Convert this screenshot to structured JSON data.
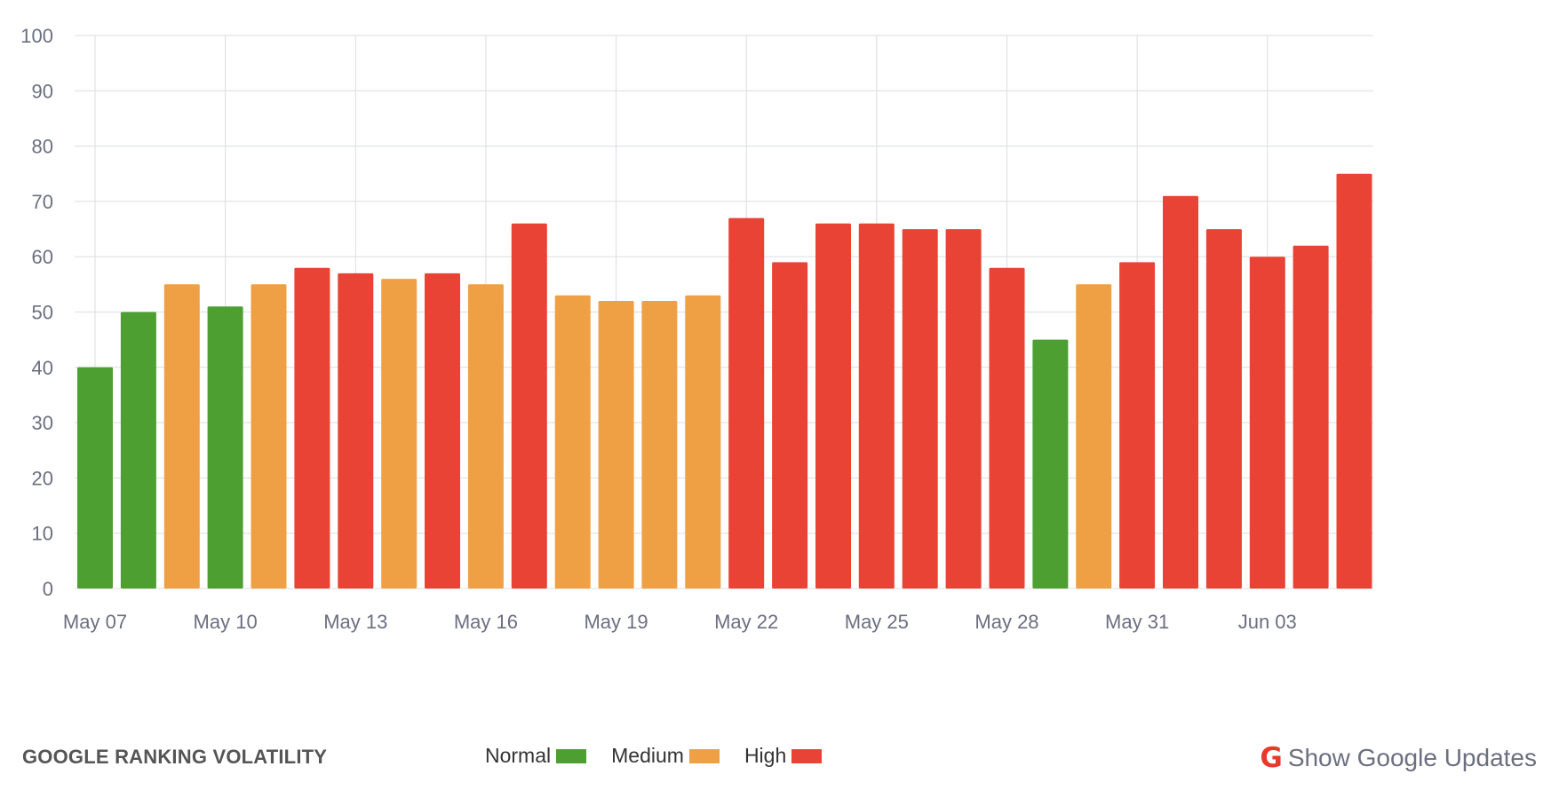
{
  "chart_data": {
    "type": "bar",
    "title": "GOOGLE RANKING VOLATILITY",
    "categories": [
      "May 07",
      "May 08",
      "May 09",
      "May 10",
      "May 11",
      "May 12",
      "May 13",
      "May 14",
      "May 15",
      "May 16",
      "May 17",
      "May 18",
      "May 19",
      "May 20",
      "May 21",
      "May 22",
      "May 23",
      "May 24",
      "May 25",
      "May 26",
      "May 27",
      "May 28",
      "May 29",
      "May 30",
      "May 31",
      "Jun 01",
      "Jun 02",
      "Jun 03",
      "Jun 04",
      "Jun 05"
    ],
    "values": [
      40,
      50,
      55,
      51,
      55,
      58,
      57,
      56,
      57,
      55,
      66,
      53,
      52,
      52,
      53,
      67,
      59,
      66,
      66,
      65,
      65,
      58,
      45,
      55,
      59,
      71,
      65,
      60,
      62,
      75
    ],
    "levels": [
      "Normal",
      "Normal",
      "Medium",
      "Normal",
      "Medium",
      "High",
      "High",
      "Medium",
      "High",
      "Medium",
      "High",
      "Medium",
      "Medium",
      "Medium",
      "Medium",
      "High",
      "High",
      "High",
      "High",
      "High",
      "High",
      "High",
      "Normal",
      "Medium",
      "High",
      "High",
      "High",
      "High",
      "High",
      "High"
    ],
    "x_tick_labels": [
      {
        "label": "May 07",
        "index": 0
      },
      {
        "label": "May 10",
        "index": 3
      },
      {
        "label": "May 13",
        "index": 6
      },
      {
        "label": "May 16",
        "index": 9
      },
      {
        "label": "May 19",
        "index": 12
      },
      {
        "label": "May 22",
        "index": 15
      },
      {
        "label": "May 25",
        "index": 18
      },
      {
        "label": "May 28",
        "index": 21
      },
      {
        "label": "May 31",
        "index": 24
      },
      {
        "label": "Jun 03",
        "index": 27
      }
    ],
    "y_ticks": [
      0,
      10,
      20,
      30,
      40,
      50,
      60,
      70,
      80,
      90,
      100
    ],
    "ylim": [
      0,
      100
    ],
    "grid": true,
    "xlabel": "",
    "ylabel": ""
  },
  "legend": [
    {
      "label": "Normal",
      "color": "#4e9f32"
    },
    {
      "label": "Medium",
      "color": "#f0a044"
    },
    {
      "label": "High",
      "color": "#e94335"
    }
  ],
  "updates_link": {
    "icon": "google-g-icon",
    "glyph": "G",
    "label": "Show Google Updates"
  }
}
